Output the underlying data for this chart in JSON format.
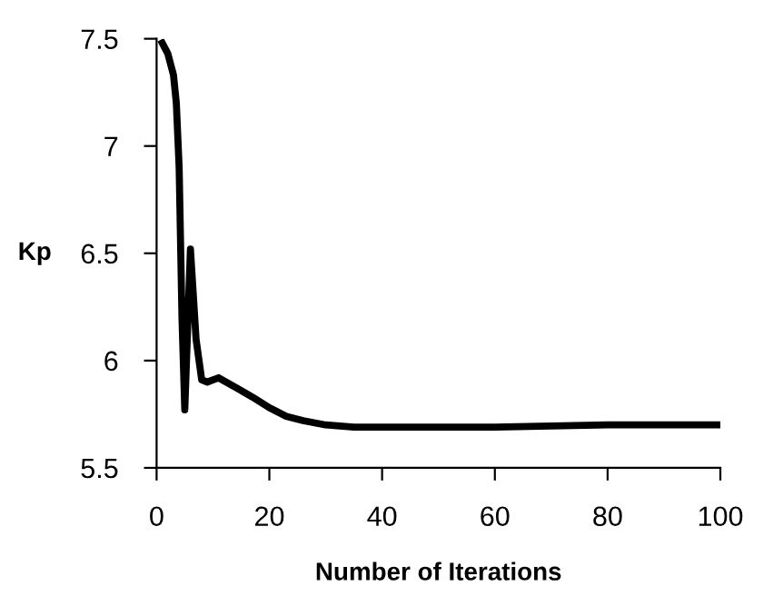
{
  "chart_data": {
    "type": "line",
    "xlabel": "Number of Iterations",
    "ylabel": "Kp",
    "series": [
      {
        "color": "#000000",
        "x": [
          1,
          2,
          3,
          3.5,
          4,
          4.5,
          5,
          6,
          7,
          8,
          9,
          10,
          11,
          13,
          15,
          17,
          20,
          23,
          26,
          30,
          35,
          40,
          60,
          80,
          100
        ],
        "values": [
          7.48,
          7.43,
          7.33,
          7.2,
          6.9,
          6.2,
          5.77,
          6.52,
          6.1,
          5.91,
          5.9,
          5.91,
          5.92,
          5.89,
          5.86,
          5.83,
          5.78,
          5.74,
          5.72,
          5.7,
          5.69,
          5.69,
          5.69,
          5.7,
          5.7
        ]
      }
    ],
    "xlim": [
      0,
      100
    ],
    "xticks": [
      0,
      20,
      40,
      60,
      80,
      100
    ],
    "ylim": [
      5.5,
      7.5
    ],
    "yticks": [
      5.5,
      6,
      6.5,
      7,
      7.5
    ],
    "grid": false,
    "legend": false,
    "marker": "none",
    "line_style": "solid"
  }
}
